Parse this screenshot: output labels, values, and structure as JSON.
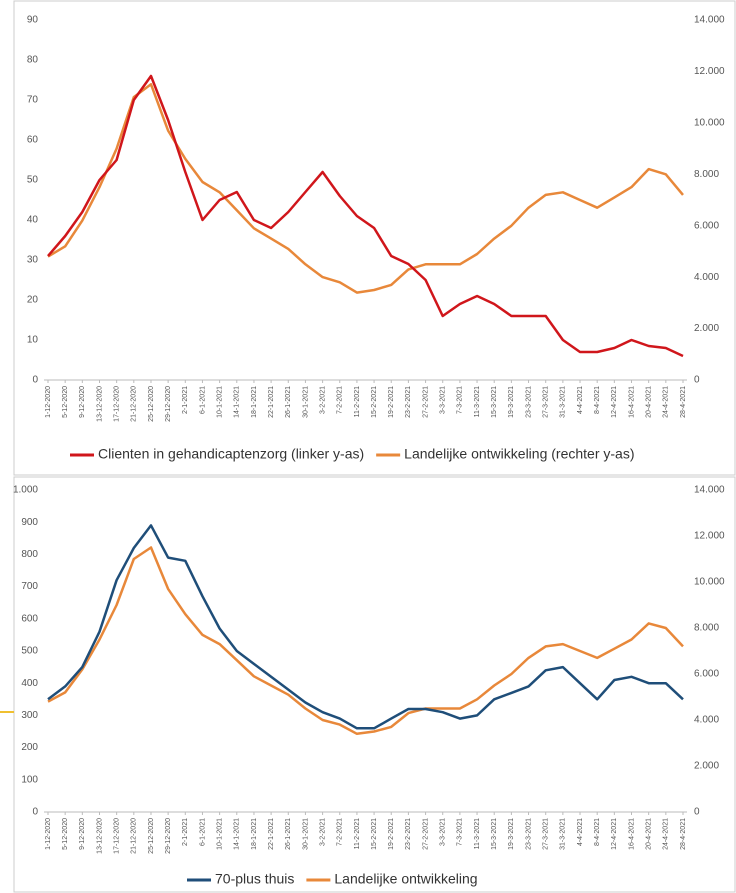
{
  "chart_data": [
    {
      "type": "line",
      "categories": [
        "1-12-2020",
        "5-12-2020",
        "9-12-2020",
        "13-12-2020",
        "17-12-2020",
        "21-12-2020",
        "25-12-2020",
        "29-12-2020",
        "2-1-2021",
        "6-1-2021",
        "10-1-2021",
        "14-1-2021",
        "18-1-2021",
        "22-1-2021",
        "26-1-2021",
        "30-1-2021",
        "3-2-2021",
        "7-2-2021",
        "11-2-2021",
        "15-2-2021",
        "19-2-2021",
        "23-2-2021",
        "27-2-2021",
        "3-3-2021",
        "7-3-2021",
        "11-3-2021",
        "15-3-2021",
        "19-3-2021",
        "23-3-2021",
        "27-3-2021",
        "31-3-2021",
        "4-4-2021",
        "8-4-2021",
        "12-4-2021",
        "16-4-2021",
        "20-4-2021",
        "24-4-2021",
        "28-4-2021"
      ],
      "series": [
        {
          "name": "Clienten in gehandicaptenzorg (linker y-as)",
          "color": "#d0161b",
          "axis": "y",
          "values": [
            31,
            36,
            42,
            50,
            55,
            70,
            76,
            65,
            52,
            40,
            45,
            47,
            40,
            38,
            42,
            47,
            52,
            46,
            41,
            38,
            31,
            29,
            25,
            16,
            19,
            21,
            19,
            16,
            16,
            16,
            10,
            7,
            7,
            8,
            10,
            8.5,
            8,
            6
          ]
        },
        {
          "name": "Landelijke ontwikkeling (rechter y-as)",
          "color": "#e8883a",
          "axis": "y2",
          "values": [
            4800,
            5200,
            6200,
            7500,
            9000,
            11000,
            11500,
            9700,
            8600,
            7700,
            7300,
            6600,
            5900,
            5500,
            5100,
            4500,
            4000,
            3800,
            3400,
            3500,
            3700,
            4300,
            4500,
            4500,
            4500,
            4900,
            5500,
            6000,
            6700,
            7200,
            7300,
            7000,
            6700,
            7100,
            7500,
            8200,
            8000,
            7200
          ]
        }
      ],
      "ylim": [
        0,
        90
      ],
      "yticks": [
        0,
        10,
        20,
        30,
        40,
        50,
        60,
        70,
        80,
        90
      ],
      "y2lim": [
        0,
        14000
      ],
      "y2ticks": [
        0,
        {
          "value": 2000,
          "label": "2.000"
        },
        {
          "value": 4000,
          "label": "4.000"
        },
        {
          "value": 6000,
          "label": "6.000"
        },
        {
          "value": 8000,
          "label": "8.000"
        },
        {
          "value": 10000,
          "label": "10.000"
        },
        {
          "value": 12000,
          "label": "12.000"
        },
        {
          "value": 14000,
          "label": "14.000"
        }
      ]
    },
    {
      "type": "line",
      "categories": [
        "1-12-2020",
        "5-12-2020",
        "9-12-2020",
        "13-12-2020",
        "17-12-2020",
        "21-12-2020",
        "25-12-2020",
        "29-12-2020",
        "2-1-2021",
        "6-1-2021",
        "10-1-2021",
        "14-1-2021",
        "18-1-2021",
        "22-1-2021",
        "26-1-2021",
        "30-1-2021",
        "3-2-2021",
        "7-2-2021",
        "11-2-2021",
        "15-2-2021",
        "19-2-2021",
        "23-2-2021",
        "27-2-2021",
        "3-3-2021",
        "7-3-2021",
        "11-3-2021",
        "15-3-2021",
        "19-3-2021",
        "23-3-2021",
        "27-3-2021",
        "31-3-2021",
        "4-4-2021",
        "8-4-2021",
        "12-4-2021",
        "16-4-2021",
        "20-4-2021",
        "24-4-2021",
        "28-4-2021"
      ],
      "series": [
        {
          "name": "70-plus thuis",
          "color": "#1f4e79",
          "axis": "y",
          "values": [
            350,
            390,
            450,
            560,
            720,
            820,
            890,
            790,
            780,
            670,
            570,
            500,
            460,
            420,
            380,
            340,
            310,
            290,
            260,
            260,
            290,
            320,
            320,
            310,
            290,
            300,
            350,
            370,
            390,
            440,
            450,
            400,
            350,
            410,
            420,
            400,
            400,
            350
          ]
        },
        {
          "name": "Landelijke ontwikkeling",
          "color": "#e8883a",
          "axis": "y2",
          "values": [
            4800,
            5200,
            6200,
            7500,
            9000,
            11000,
            11500,
            9700,
            8600,
            7700,
            7300,
            6600,
            5900,
            5500,
            5100,
            4500,
            4000,
            3800,
            3400,
            3500,
            3700,
            4300,
            4500,
            4500,
            4500,
            4900,
            5500,
            6000,
            6700,
            7200,
            7300,
            7000,
            6700,
            7100,
            7500,
            8200,
            8000,
            7200
          ]
        }
      ],
      "ylim": [
        0,
        1000
      ],
      "yticks": [
        0,
        100,
        200,
        300,
        400,
        500,
        600,
        700,
        800,
        900,
        {
          "value": 1000,
          "label": "1.000"
        }
      ],
      "y2lim": [
        0,
        14000
      ],
      "y2ticks": [
        0,
        {
          "value": 2000,
          "label": "2.000"
        },
        {
          "value": 4000,
          "label": "4.000"
        },
        {
          "value": 6000,
          "label": "6.000"
        },
        {
          "value": 8000,
          "label": "8.000"
        },
        {
          "value": 10000,
          "label": "10.000"
        },
        {
          "value": 12000,
          "label": "12.000"
        },
        {
          "value": 14000,
          "label": "14.000"
        }
      ]
    }
  ]
}
